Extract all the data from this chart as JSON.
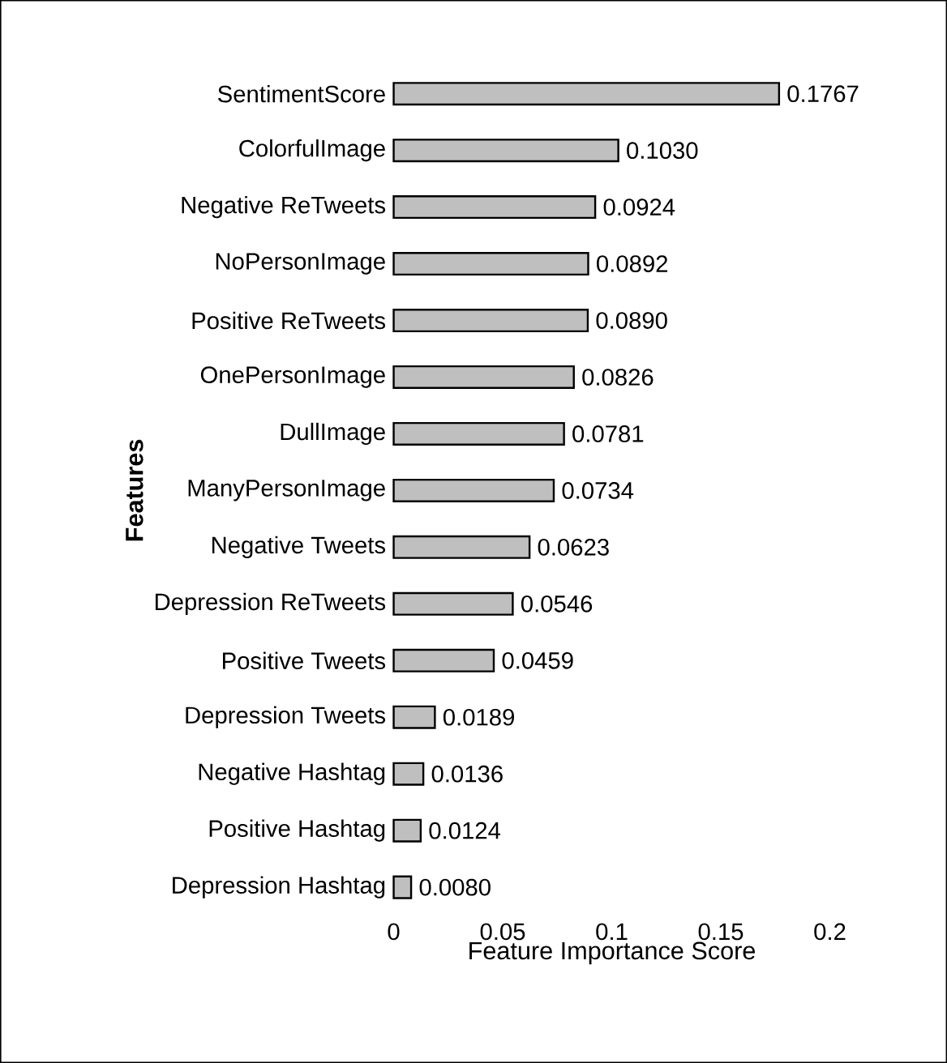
{
  "chart_data": {
    "type": "bar",
    "orientation": "horizontal",
    "xlabel": "Feature Importance Score",
    "ylabel": "Features",
    "categories": [
      "SentimentScore",
      "ColorfulImage",
      "Negative ReTweets",
      "NoPersonImage",
      "Positive ReTweets",
      "OnePersonImage",
      "DullImage",
      "ManyPersonImage",
      "Negative Tweets",
      "Depression ReTweets",
      "Positive Tweets",
      "Depression Tweets",
      "Negative Hashtag",
      "Positive Hashtag",
      "Depression Hashtag"
    ],
    "values": [
      0.1767,
      0.103,
      0.0924,
      0.0892,
      0.089,
      0.0826,
      0.0781,
      0.0734,
      0.0623,
      0.0546,
      0.0459,
      0.0189,
      0.0136,
      0.0124,
      0.008
    ],
    "value_labels": [
      "0.1767",
      "0.1030",
      "0.0924",
      "0.0892",
      "0.0890",
      "0.0826",
      "0.0781",
      "0.0734",
      "0.0623",
      "0.0546",
      "0.0459",
      "0.0189",
      "0.0136",
      "0.0124",
      "0.0080"
    ],
    "color": "#bfbfbf",
    "xlim": [
      0,
      0.2
    ],
    "xticks": [
      0,
      0.05,
      0.1,
      0.15,
      0.2
    ],
    "grid": false
  }
}
